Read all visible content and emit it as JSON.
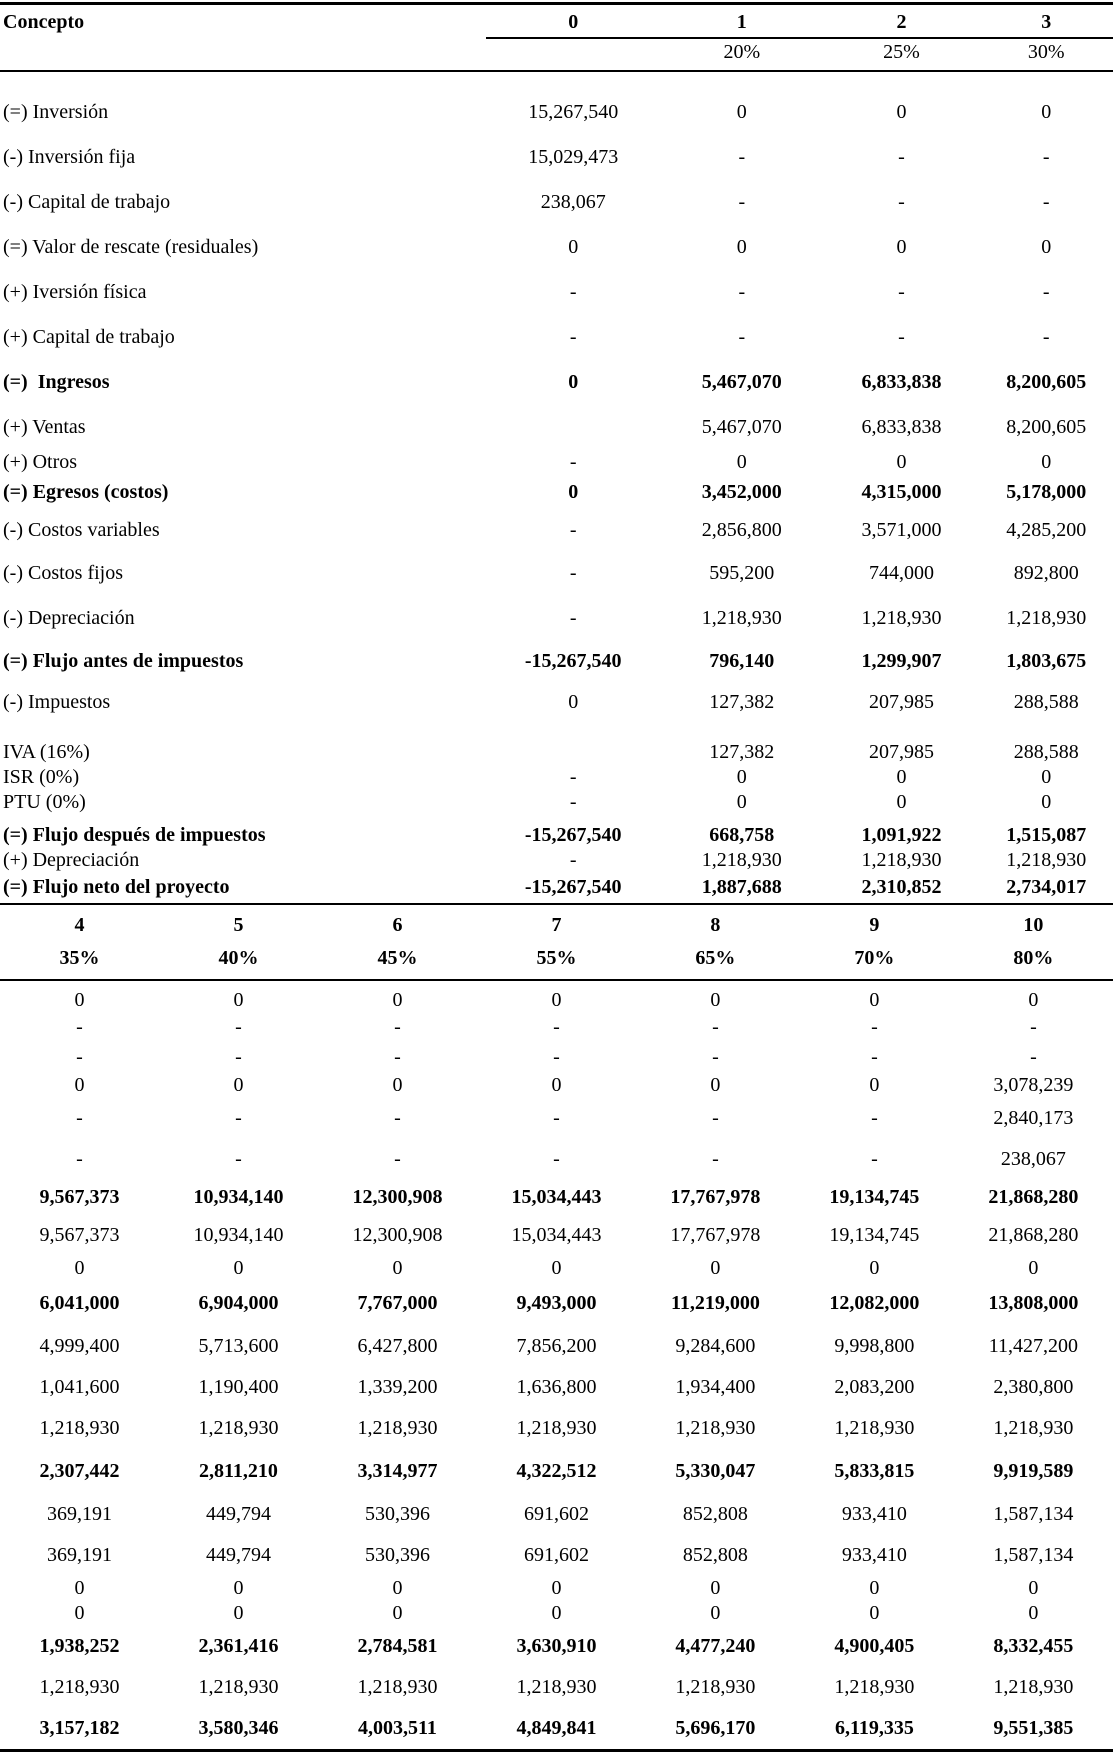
{
  "colors": {
    "text": "#000000",
    "background": "#ffffff",
    "rule": "#000000"
  },
  "table_top": {
    "concept_header": "Concepto",
    "period_headers": [
      "0",
      "1",
      "2",
      "3"
    ],
    "rate_headers": [
      "",
      "20%",
      "25%",
      "30%"
    ],
    "rows": [
      {
        "label": "(=) Inversión",
        "bold": false,
        "values": [
          "15,267,540",
          "0",
          "0",
          "0"
        ]
      },
      {
        "label": "(-) Inversión fija",
        "bold": false,
        "values": [
          "15,029,473",
          "-",
          "-",
          "-"
        ]
      },
      {
        "label": "(-) Capital de trabajo",
        "bold": false,
        "values": [
          "238,067",
          "-",
          "-",
          "-"
        ]
      },
      {
        "label": "(=) Valor de rescate (residuales)",
        "bold": false,
        "values": [
          "0",
          "0",
          "0",
          "0"
        ]
      },
      {
        "label": "(+) Iversión física",
        "bold": false,
        "values": [
          "-",
          "-",
          "-",
          "-"
        ]
      },
      {
        "label": "(+) Capital de trabajo",
        "bold": false,
        "values": [
          "-",
          "-",
          "-",
          "-"
        ]
      },
      {
        "label": "(=)  Ingresos",
        "bold": true,
        "values": [
          "0",
          "5,467,070",
          "6,833,838",
          "8,200,605"
        ]
      },
      {
        "label": "(+) Ventas",
        "bold": false,
        "values": [
          "",
          "5,467,070",
          "6,833,838",
          "8,200,605"
        ]
      },
      {
        "label": "(+) Otros",
        "bold": false,
        "values": [
          "-",
          "0",
          "0",
          "0"
        ]
      },
      {
        "label": "(=) Egresos (costos)",
        "bold": true,
        "values": [
          "0",
          "3,452,000",
          "4,315,000",
          "5,178,000"
        ]
      },
      {
        "label": "(-) Costos variables",
        "bold": false,
        "values": [
          "-",
          "2,856,800",
          "3,571,000",
          "4,285,200"
        ]
      },
      {
        "label": "(-) Costos fijos",
        "bold": false,
        "values": [
          "-",
          "595,200",
          "744,000",
          "892,800"
        ]
      },
      {
        "label": "(-) Depreciación",
        "bold": false,
        "values": [
          "-",
          "1,218,930",
          "1,218,930",
          "1,218,930"
        ]
      },
      {
        "label": "(=) Flujo antes de impuestos",
        "bold": true,
        "values": [
          "-15,267,540",
          "796,140",
          "1,299,907",
          "1,803,675"
        ]
      },
      {
        "label": "(-) Impuestos",
        "bold": false,
        "values": [
          "0",
          "127,382",
          "207,985",
          "288,588"
        ]
      },
      {
        "label": "IVA (16%)",
        "bold": false,
        "values": [
          "",
          "127,382",
          "207,985",
          "288,588"
        ]
      },
      {
        "label": "ISR (0%)",
        "bold": false,
        "values": [
          "-",
          "0",
          "0",
          "0"
        ]
      },
      {
        "label": "PTU (0%)",
        "bold": false,
        "values": [
          "-",
          "0",
          "0",
          "0"
        ]
      },
      {
        "label": "(=) Flujo después de impuestos",
        "bold": true,
        "values": [
          "-15,267,540",
          "668,758",
          "1,091,922",
          "1,515,087"
        ]
      },
      {
        "label": "(+) Depreciación",
        "bold": false,
        "values": [
          "-",
          "1,218,930",
          "1,218,930",
          "1,218,930"
        ]
      },
      {
        "label": "(=) Flujo neto del proyecto",
        "bold": true,
        "values": [
          "-15,267,540",
          "1,887,688",
          "2,310,852",
          "2,734,017"
        ]
      }
    ]
  },
  "table_bottom": {
    "period_headers": [
      "4",
      "5",
      "6",
      "7",
      "8",
      "9",
      "10"
    ],
    "rate_headers": [
      "35%",
      "40%",
      "45%",
      "55%",
      "65%",
      "70%",
      "80%"
    ],
    "rows": [
      {
        "bold": false,
        "values": [
          "0",
          "0",
          "0",
          "0",
          "0",
          "0",
          "0"
        ]
      },
      {
        "bold": false,
        "values": [
          "-",
          "-",
          "-",
          "-",
          "-",
          "-",
          "-"
        ]
      },
      {
        "bold": false,
        "values": [
          "-",
          "-",
          "-",
          "-",
          "-",
          "-",
          "-"
        ]
      },
      {
        "bold": false,
        "values": [
          "0",
          "0",
          "0",
          "0",
          "0",
          "0",
          "3,078,239"
        ]
      },
      {
        "bold": false,
        "values": [
          "-",
          "-",
          "-",
          "-",
          "-",
          "-",
          "2,840,173"
        ]
      },
      {
        "bold": false,
        "values": [
          "-",
          "-",
          "-",
          "-",
          "-",
          "-",
          "238,067"
        ]
      },
      {
        "bold": true,
        "values": [
          "9,567,373",
          "10,934,140",
          "12,300,908",
          "15,034,443",
          "17,767,978",
          "19,134,745",
          "21,868,280"
        ]
      },
      {
        "bold": false,
        "values": [
          "9,567,373",
          "10,934,140",
          "12,300,908",
          "15,034,443",
          "17,767,978",
          "19,134,745",
          "21,868,280"
        ]
      },
      {
        "bold": false,
        "values": [
          "0",
          "0",
          "0",
          "0",
          "0",
          "0",
          "0"
        ]
      },
      {
        "bold": true,
        "values": [
          "6,041,000",
          "6,904,000",
          "7,767,000",
          "9,493,000",
          "11,219,000",
          "12,082,000",
          "13,808,000"
        ]
      },
      {
        "bold": false,
        "values": [
          "4,999,400",
          "5,713,600",
          "6,427,800",
          "7,856,200",
          "9,284,600",
          "9,998,800",
          "11,427,200"
        ]
      },
      {
        "bold": false,
        "values": [
          "1,041,600",
          "1,190,400",
          "1,339,200",
          "1,636,800",
          "1,934,400",
          "2,083,200",
          "2,380,800"
        ]
      },
      {
        "bold": false,
        "values": [
          "1,218,930",
          "1,218,930",
          "1,218,930",
          "1,218,930",
          "1,218,930",
          "1,218,930",
          "1,218,930"
        ]
      },
      {
        "bold": true,
        "values": [
          "2,307,442",
          "2,811,210",
          "3,314,977",
          "4,322,512",
          "5,330,047",
          "5,833,815",
          "9,919,589"
        ]
      },
      {
        "bold": false,
        "values": [
          "369,191",
          "449,794",
          "530,396",
          "691,602",
          "852,808",
          "933,410",
          "1,587,134"
        ]
      },
      {
        "bold": false,
        "values": [
          "369,191",
          "449,794",
          "530,396",
          "691,602",
          "852,808",
          "933,410",
          "1,587,134"
        ]
      },
      {
        "bold": false,
        "values": [
          "0",
          "0",
          "0",
          "0",
          "0",
          "0",
          "0"
        ]
      },
      {
        "bold": false,
        "values": [
          "0",
          "0",
          "0",
          "0",
          "0",
          "0",
          "0"
        ]
      },
      {
        "bold": true,
        "values": [
          "1,938,252",
          "2,361,416",
          "2,784,581",
          "3,630,910",
          "4,477,240",
          "4,900,405",
          "8,332,455"
        ]
      },
      {
        "bold": false,
        "values": [
          "1,218,930",
          "1,218,930",
          "1,218,930",
          "1,218,930",
          "1,218,930",
          "1,218,930",
          "1,218,930"
        ]
      },
      {
        "bold": true,
        "values": [
          "3,157,182",
          "3,580,346",
          "4,003,511",
          "4,849,841",
          "5,696,170",
          "6,119,335",
          "9,551,385"
        ]
      }
    ]
  }
}
